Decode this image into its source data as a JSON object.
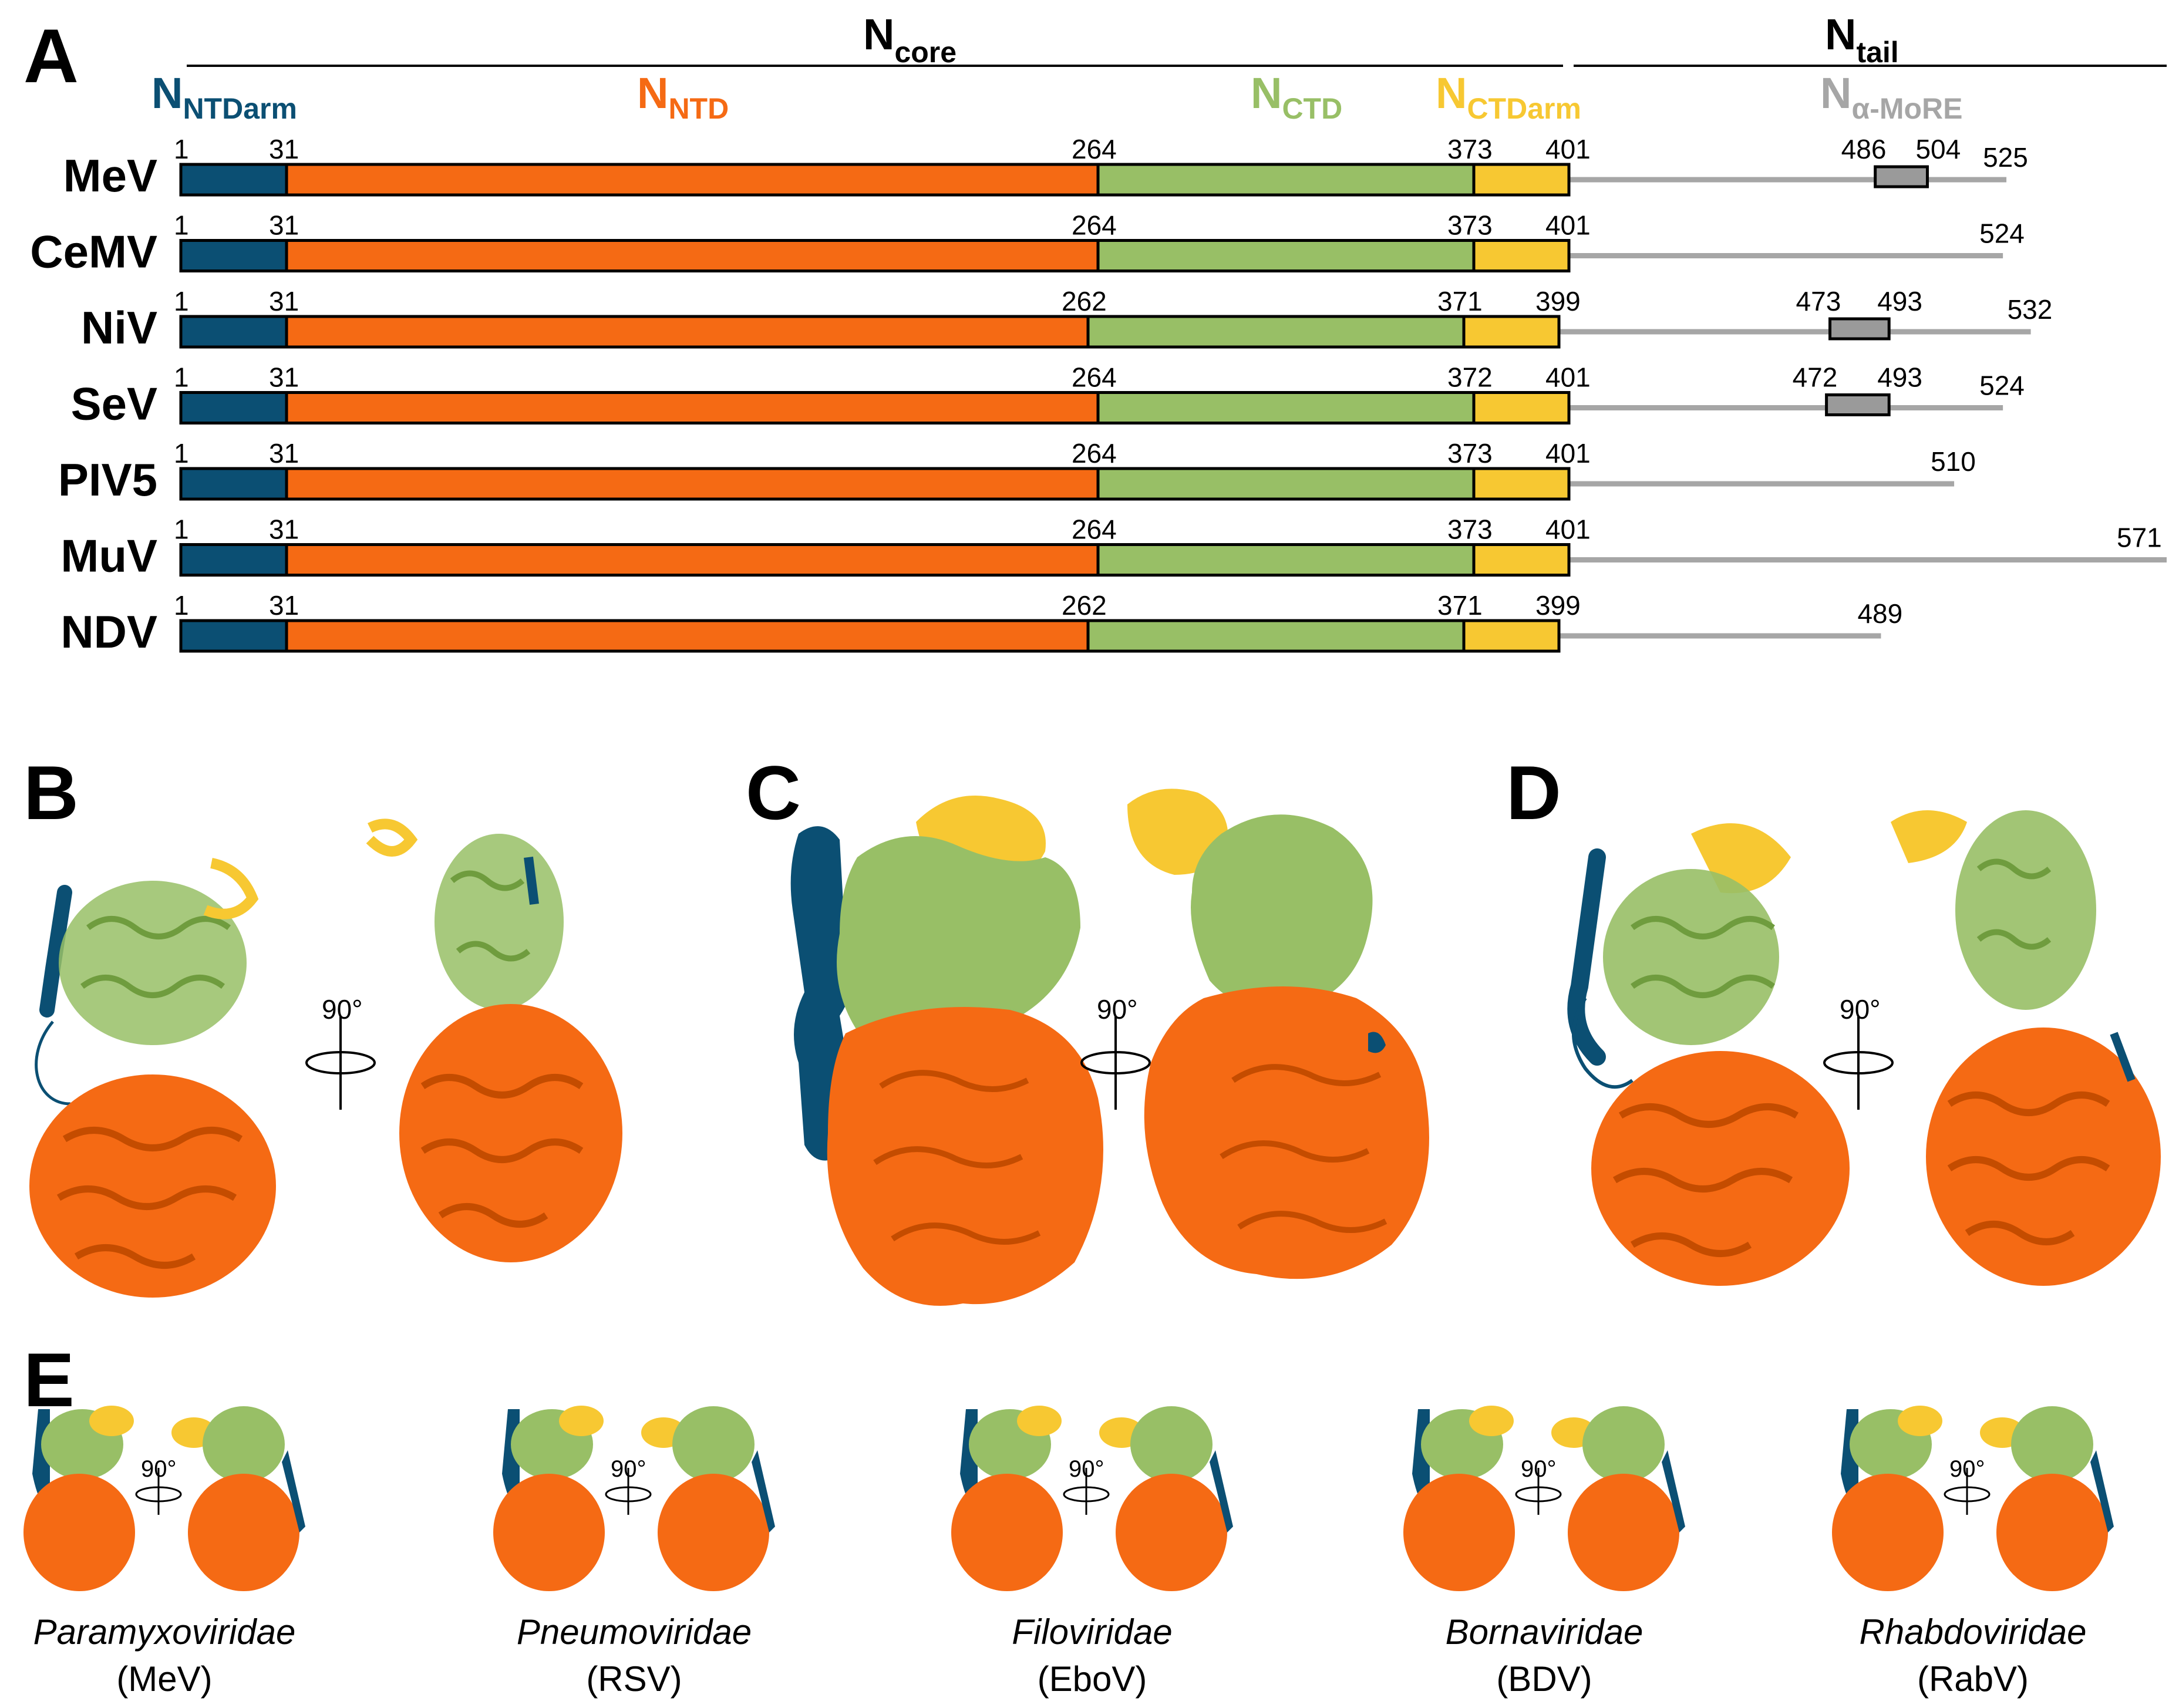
{
  "colors": {
    "ntdarm": "#0b4f73",
    "ntd": "#f56a14",
    "ctd": "#98bf66",
    "ctdarm": "#f7c832",
    "tail": "#a6a6a6",
    "more": "#9a9a9a"
  },
  "panels": {
    "a": "A",
    "b": "B",
    "c": "C",
    "d": "D",
    "e": "E"
  },
  "headers": {
    "ncore": {
      "main": "N",
      "sub": "core"
    },
    "ntail": {
      "main": "N",
      "sub": "tail"
    }
  },
  "domains": {
    "ntdarm": {
      "main": "N",
      "sub": "NTDarm"
    },
    "ntd": {
      "main": "N",
      "sub": "NTD"
    },
    "ctd": {
      "main": "N",
      "sub": "CTD"
    },
    "ctdarm": {
      "main": "N",
      "sub": "CTDarm"
    },
    "more": {
      "main": "N",
      "sub": "α-MoRE"
    }
  },
  "rotation": "90°",
  "viruses": [
    {
      "name": "MeV",
      "start": "1",
      "b1": 31,
      "b2": 264,
      "b3": 373,
      "b4": 401,
      "end": 525,
      "more": [
        486,
        504
      ]
    },
    {
      "name": "CeMV",
      "start": "1",
      "b1": 31,
      "b2": 264,
      "b3": 373,
      "b4": 401,
      "end": 524
    },
    {
      "name": "NiV",
      "start": "1",
      "b1": 31,
      "b2": 262,
      "b3": 371,
      "b4": 399,
      "end": 532,
      "more": [
        473,
        493
      ]
    },
    {
      "name": "SeV",
      "start": "1",
      "b1": 31,
      "b2": 264,
      "b3": 372,
      "b4": 401,
      "end": 524,
      "more": [
        472,
        493
      ]
    },
    {
      "name": "PIV5",
      "start": "1",
      "b1": 31,
      "b2": 264,
      "b3": 373,
      "b4": 401,
      "end": 510
    },
    {
      "name": "MuV",
      "start": "1",
      "b1": 31,
      "b2": 264,
      "b3": 373,
      "b4": 401,
      "end": 571
    },
    {
      "name": "NDV",
      "start": "1",
      "b1": 31,
      "b2": 262,
      "b3": 371,
      "b4": 399,
      "end": 489
    }
  ],
  "families": [
    {
      "family": "Paramyxoviridae",
      "virus": "(MeV)"
    },
    {
      "family": "Pneumoviridae",
      "virus": "(RSV)"
    },
    {
      "family": "Filoviridae",
      "virus": "(EboV)"
    },
    {
      "family": "Bornaviridae",
      "virus": "(BDV)"
    },
    {
      "family": "Rhabdoviridae",
      "virus": "(RabV)"
    }
  ]
}
